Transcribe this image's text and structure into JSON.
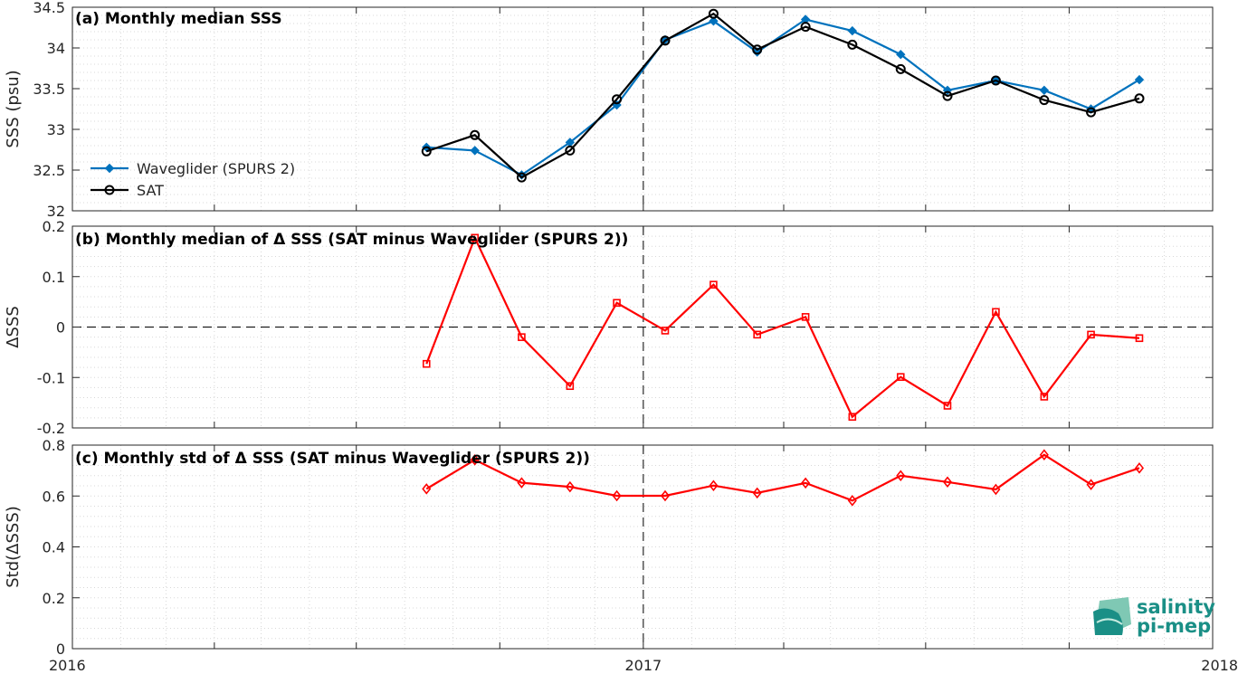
{
  "chart_data": [
    {
      "type": "line",
      "title": "(a) Monthly median SSS",
      "ylabel": "SSS (psu)",
      "xlim": [
        "2016-01-01",
        "2018-01-01"
      ],
      "ylim": [
        32,
        34.5
      ],
      "yticks": [
        32,
        32.5,
        33,
        33.5,
        34,
        34.5
      ],
      "ytick_labels": [
        "32",
        "32.5",
        "33",
        "33.5",
        "34",
        "34.5"
      ],
      "grid": "minor dotted",
      "legend_position": "left",
      "reference_vline": "2017-01-01",
      "x": [
        "2016-08-15",
        "2016-09-15",
        "2016-10-15",
        "2016-11-15",
        "2016-12-15",
        "2017-01-15",
        "2017-02-15",
        "2017-03-15",
        "2017-04-15",
        "2017-05-15",
        "2017-06-15",
        "2017-07-15",
        "2017-08-15",
        "2017-09-15",
        "2017-10-15",
        "2017-11-15"
      ],
      "series": [
        {
          "name": "Waveglider (SPURS 2)",
          "color": "#0072bd",
          "marker": "filled-diamond",
          "values": [
            32.78,
            32.74,
            32.44,
            32.84,
            33.3,
            34.1,
            34.33,
            33.95,
            34.35,
            34.21,
            33.92,
            33.48,
            33.6,
            33.48,
            33.25,
            33.61
          ]
        },
        {
          "name": "SAT",
          "color": "#000000",
          "marker": "open-circle",
          "values": [
            32.73,
            32.93,
            32.41,
            32.74,
            33.37,
            34.09,
            34.42,
            33.98,
            34.26,
            34.04,
            33.74,
            33.41,
            33.6,
            33.36,
            33.21,
            33.38
          ]
        }
      ]
    },
    {
      "type": "line",
      "title": "(b) Monthly median of Δ SSS (SAT minus Waveglider (SPURS 2))",
      "ylabel": "ΔSSS",
      "xlim": [
        "2016-01-01",
        "2018-01-01"
      ],
      "ylim": [
        -0.2,
        0.2
      ],
      "yticks": [
        -0.2,
        -0.1,
        0,
        0.1,
        0.2
      ],
      "ytick_labels": [
        "-0.2",
        "-0.1",
        "0",
        "0.1",
        "0.2"
      ],
      "grid": "minor dotted",
      "reference_hline": 0,
      "reference_vline": "2017-01-01",
      "x": [
        "2016-08-15",
        "2016-09-15",
        "2016-10-15",
        "2016-11-15",
        "2016-12-15",
        "2017-01-15",
        "2017-02-15",
        "2017-03-15",
        "2017-04-15",
        "2017-05-15",
        "2017-06-15",
        "2017-07-15",
        "2017-08-15",
        "2017-09-15",
        "2017-10-15",
        "2017-11-15"
      ],
      "series": [
        {
          "color": "#ff0000",
          "marker": "open-square",
          "values": [
            -0.073,
            0.177,
            -0.02,
            -0.117,
            0.048,
            -0.007,
            0.084,
            -0.015,
            0.02,
            -0.178,
            -0.099,
            -0.156,
            0.03,
            -0.138,
            -0.015,
            -0.022
          ]
        }
      ]
    },
    {
      "type": "line",
      "title": "(c) Monthly std of Δ SSS (SAT minus Waveglider (SPURS 2))",
      "ylabel": "Std(ΔSSS)",
      "xlim": [
        "2016-01-01",
        "2018-01-01"
      ],
      "ylim": [
        0,
        0.8
      ],
      "yticks": [
        0,
        0.2,
        0.4,
        0.6,
        0.8
      ],
      "ytick_labels": [
        "0",
        "0.2",
        "0.4",
        "0.6",
        "0.8"
      ],
      "xticks": [
        "2016-01-01",
        "2017-01-01",
        "2018-01-01"
      ],
      "xtick_labels": [
        "2016",
        "2017",
        "2018"
      ],
      "grid": "minor dotted",
      "reference_vline": "2017-01-01",
      "x": [
        "2016-08-15",
        "2016-09-15",
        "2016-10-15",
        "2016-11-15",
        "2016-12-15",
        "2017-01-15",
        "2017-02-15",
        "2017-03-15",
        "2017-04-15",
        "2017-05-15",
        "2017-06-15",
        "2017-07-15",
        "2017-08-15",
        "2017-09-15",
        "2017-10-15",
        "2017-11-15"
      ],
      "series": [
        {
          "color": "#ff0000",
          "marker": "open-diamond",
          "values": [
            0.628,
            0.742,
            0.652,
            0.636,
            0.601,
            0.601,
            0.641,
            0.612,
            0.651,
            0.582,
            0.68,
            0.655,
            0.626,
            0.762,
            0.645,
            0.71
          ]
        }
      ]
    }
  ],
  "logo": {
    "line1": "salinity",
    "line2": "pi-mep",
    "color": "#1a8f86"
  }
}
